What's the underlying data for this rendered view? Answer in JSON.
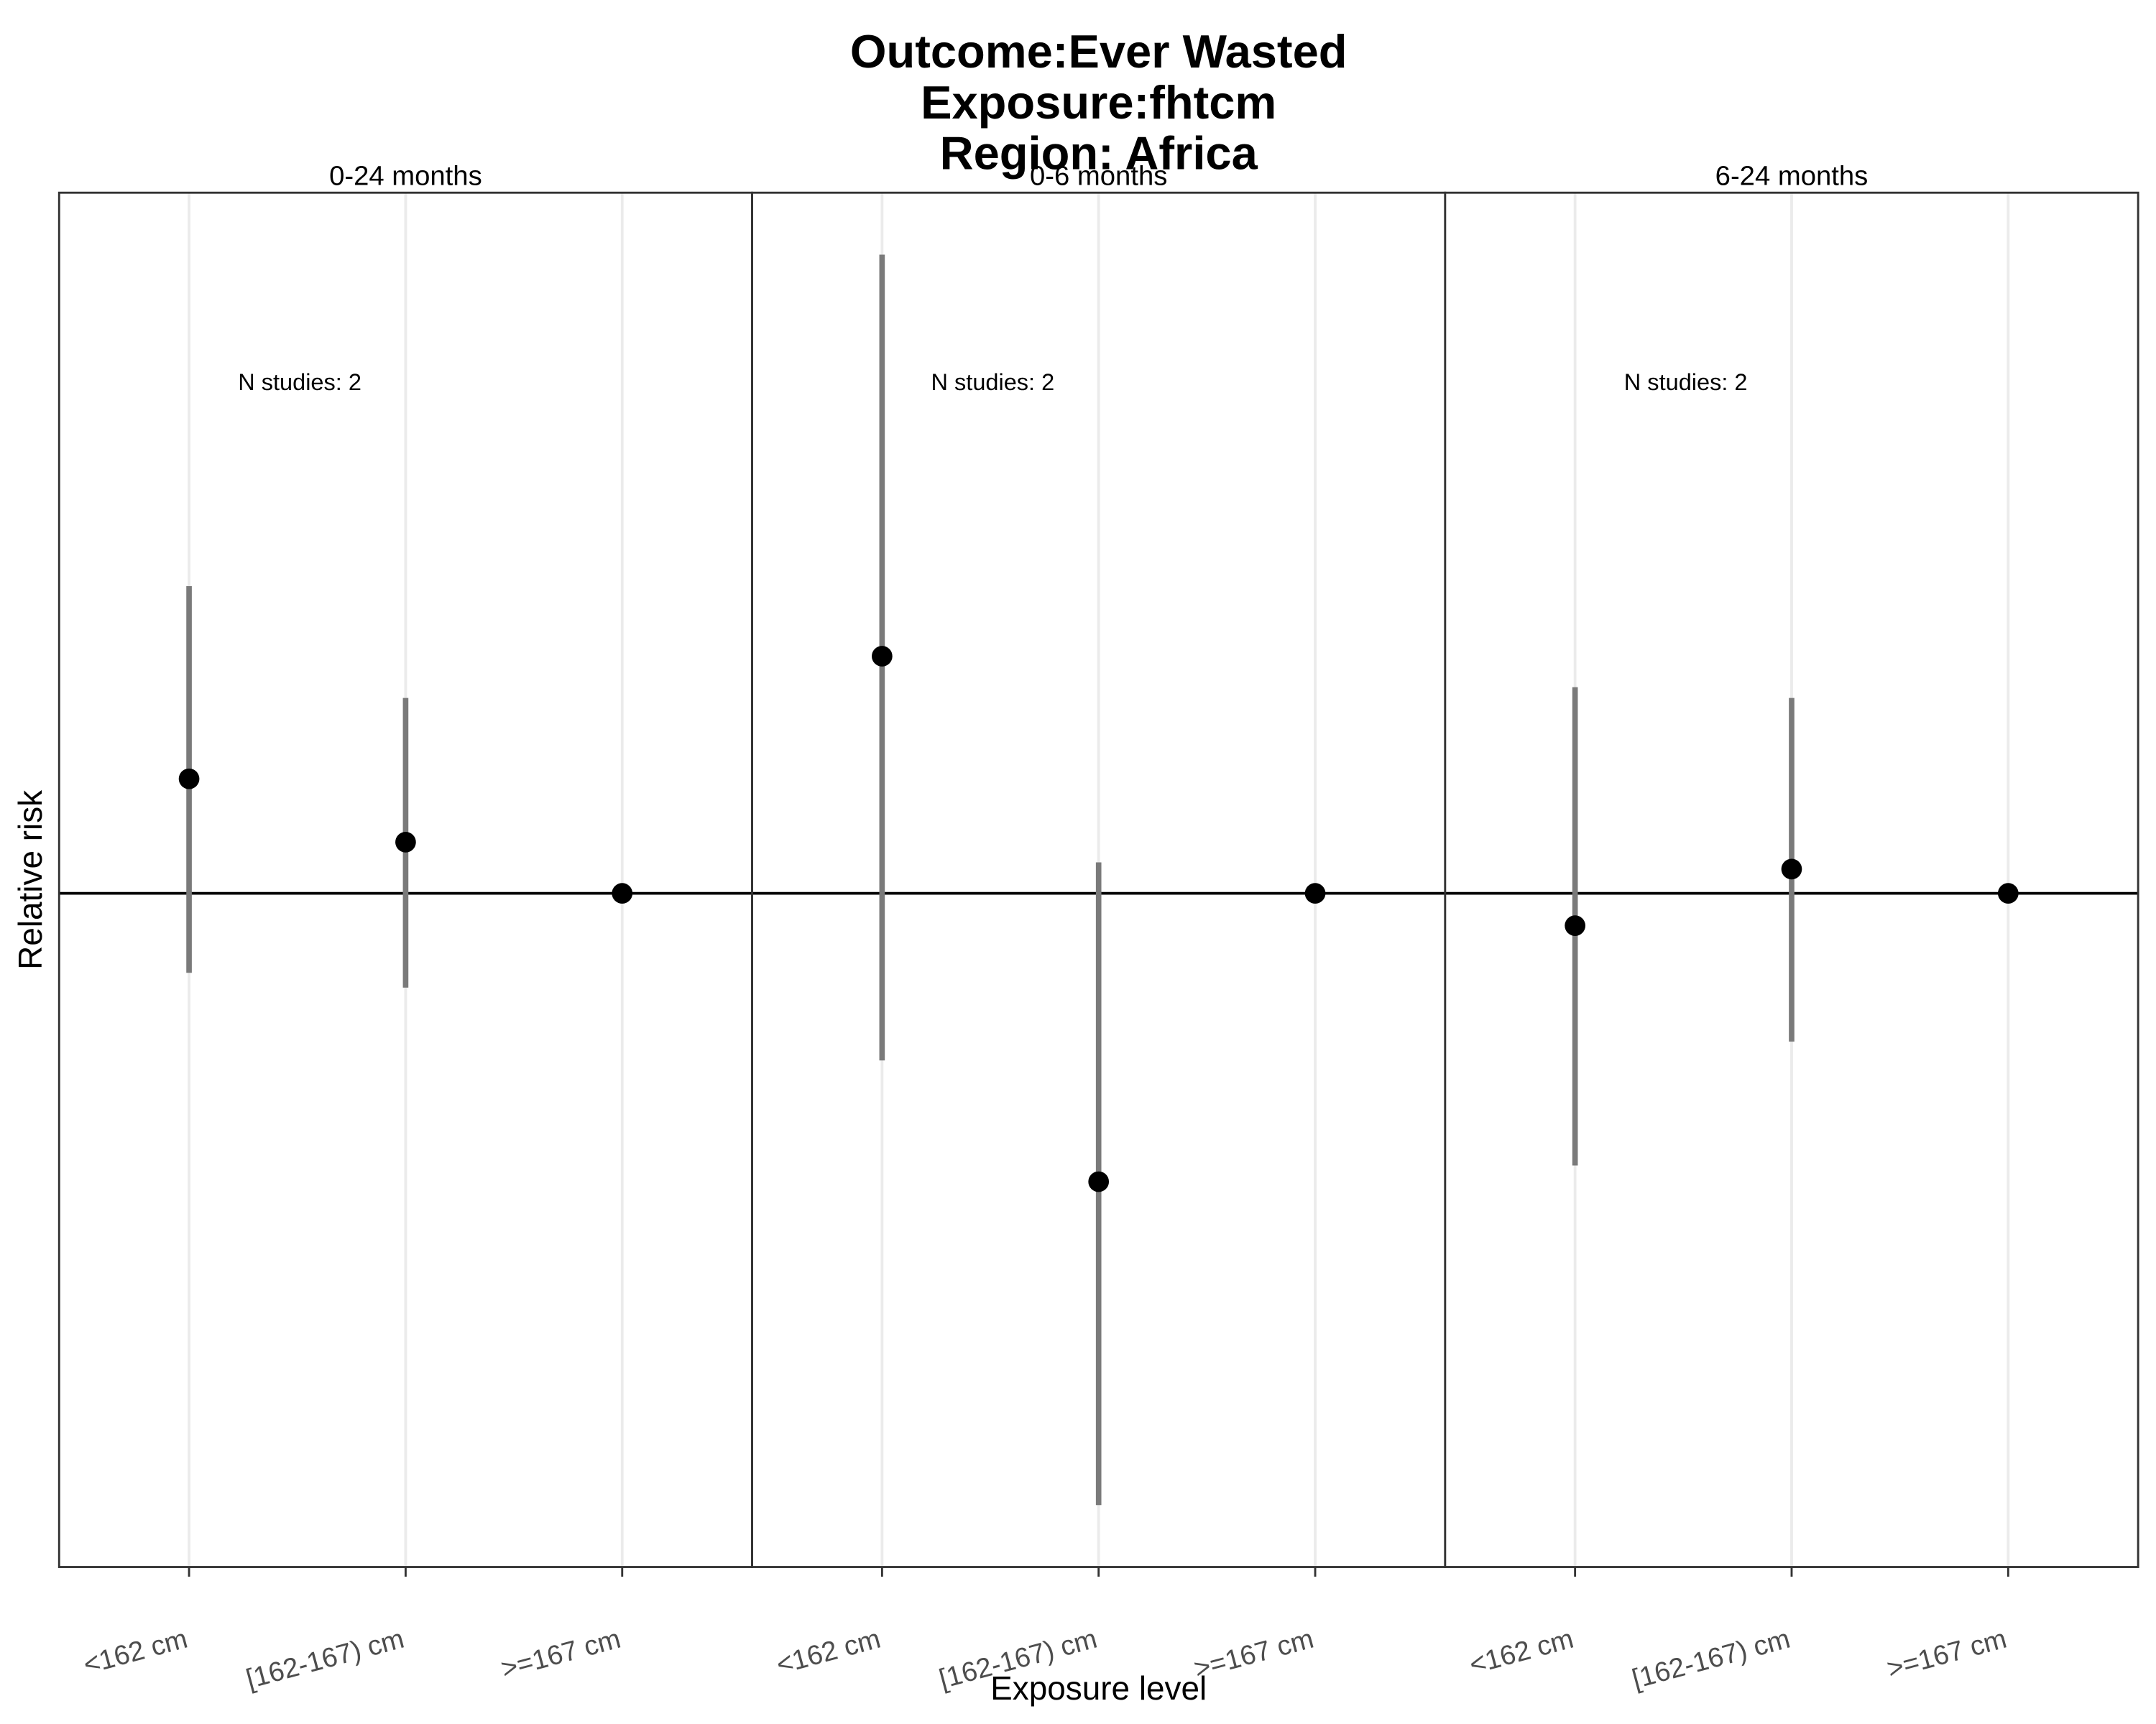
{
  "chart_data": {
    "type": "pointrange",
    "title": [
      "Outcome:Ever Wasted",
      "Exposure:fhtcm",
      "Region: Africa"
    ],
    "x_label": "Exposure level",
    "y_label": "Relative risk",
    "categories": [
      "<162 cm",
      "[162-167) cm",
      ">=167 cm"
    ],
    "ylim": [
      0.5,
      1.52
    ],
    "ref_line": 1,
    "grid": true,
    "point_color": "#000000",
    "errorbar_color": "#7a7a7a",
    "facets": [
      {
        "name": "0-24 months",
        "annotation": "N studies: 2",
        "values": [
          1.085,
          1.038,
          1
        ],
        "lower": [
          0.941,
          0.93,
          1
        ],
        "upper": [
          1.228,
          1.145,
          1
        ]
      },
      {
        "name": "0-6 months",
        "annotation": "N studies: 2",
        "values": [
          1.176,
          0.786,
          1
        ],
        "lower": [
          0.876,
          0.546,
          1
        ],
        "upper": [
          1.474,
          1.023,
          1
        ]
      },
      {
        "name": "6-24 months",
        "annotation": "N studies: 2",
        "values": [
          0.976,
          1.018,
          1
        ],
        "lower": [
          0.798,
          0.89,
          1
        ],
        "upper": [
          1.153,
          1.145,
          1
        ]
      }
    ]
  }
}
